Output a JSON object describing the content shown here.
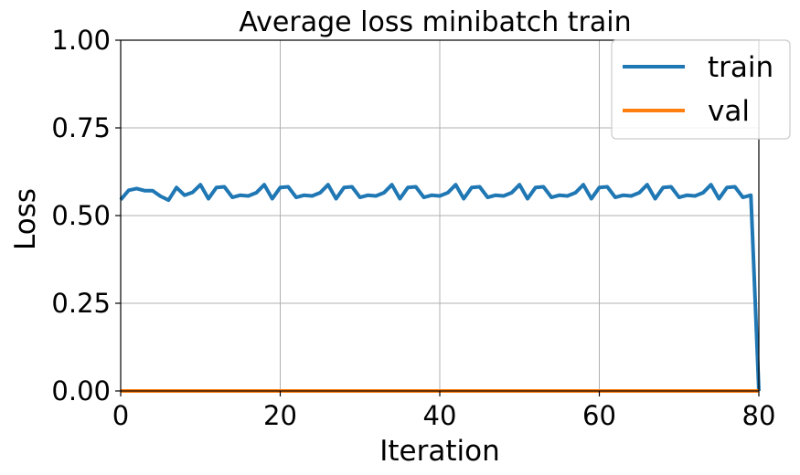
{
  "chart_data": {
    "type": "line",
    "title": "Average loss minibatch train",
    "xlabel": "Iteration",
    "ylabel": "Loss",
    "xlim": [
      0,
      80
    ],
    "ylim": [
      0,
      1
    ],
    "xticks": [
      0,
      20,
      40,
      60,
      80
    ],
    "xtick_labels": [
      "0",
      "20",
      "40",
      "60",
      "80"
    ],
    "yticks": [
      0,
      0.25,
      0.5,
      0.75,
      1
    ],
    "ytick_labels": [
      "0.00",
      "0.25",
      "0.50",
      "0.75",
      "1.00"
    ],
    "grid": true,
    "legend_position": "top-right",
    "series": [
      {
        "name": "train",
        "color": "#1f77b4",
        "x": [
          0,
          1,
          2,
          3,
          4,
          5,
          6,
          7,
          8,
          9,
          10,
          11,
          12,
          13,
          14,
          15,
          16,
          17,
          18,
          19,
          20,
          21,
          22,
          23,
          24,
          25,
          26,
          27,
          28,
          29,
          30,
          31,
          32,
          33,
          34,
          35,
          36,
          37,
          38,
          39,
          40,
          41,
          42,
          43,
          44,
          45,
          46,
          47,
          48,
          49,
          50,
          51,
          52,
          53,
          54,
          55,
          56,
          57,
          58,
          59,
          60,
          61,
          62,
          63,
          64,
          65,
          66,
          67,
          68,
          69,
          70,
          71,
          72,
          73,
          74,
          75,
          76,
          77,
          78,
          79,
          80
        ],
        "y": [
          0.545,
          0.572,
          0.577,
          0.571,
          0.571,
          0.555,
          0.544,
          0.58,
          0.558,
          0.566,
          0.588,
          0.548,
          0.58,
          0.582,
          0.552,
          0.558,
          0.556,
          0.565,
          0.588,
          0.548,
          0.58,
          0.582,
          0.552,
          0.558,
          0.556,
          0.565,
          0.588,
          0.548,
          0.58,
          0.582,
          0.552,
          0.558,
          0.556,
          0.565,
          0.588,
          0.548,
          0.58,
          0.582,
          0.552,
          0.558,
          0.556,
          0.565,
          0.588,
          0.548,
          0.58,
          0.582,
          0.552,
          0.558,
          0.556,
          0.565,
          0.588,
          0.548,
          0.58,
          0.582,
          0.552,
          0.558,
          0.556,
          0.565,
          0.588,
          0.548,
          0.58,
          0.582,
          0.552,
          0.558,
          0.556,
          0.565,
          0.588,
          0.548,
          0.58,
          0.582,
          0.552,
          0.558,
          0.556,
          0.565,
          0.588,
          0.548,
          0.58,
          0.582,
          0.552,
          0.558,
          0.0
        ]
      },
      {
        "name": "val",
        "color": "#ff7f0e",
        "x": [
          0,
          80
        ],
        "y": [
          0.0,
          0.0
        ]
      }
    ]
  }
}
